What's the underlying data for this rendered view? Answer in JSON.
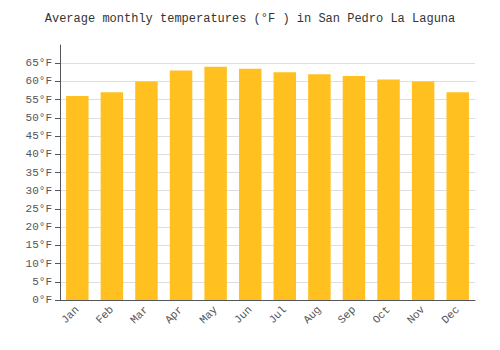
{
  "chart_data": {
    "type": "bar",
    "title": "Average monthly temperatures (°F ) in San Pedro La Laguna",
    "categories": [
      "Jan",
      "Feb",
      "Mar",
      "Apr",
      "May",
      "Jun",
      "Jul",
      "Aug",
      "Sep",
      "Oct",
      "Nov",
      "Dec"
    ],
    "values": [
      56,
      57,
      60,
      63,
      64,
      63.5,
      62.5,
      62,
      61.5,
      60.5,
      60,
      57
    ],
    "color": "#FFC020",
    "ylim": [
      0,
      70
    ],
    "yticks": [
      {
        "value": 0,
        "label": "0°F"
      },
      {
        "value": 5,
        "label": "5°F"
      },
      {
        "value": 10,
        "label": "10°F"
      },
      {
        "value": 15,
        "label": "15°F"
      },
      {
        "value": 20,
        "label": "20°F"
      },
      {
        "value": 25,
        "label": "25°F"
      },
      {
        "value": 30,
        "label": "30°F"
      },
      {
        "value": 35,
        "label": "35°F"
      },
      {
        "value": 40,
        "label": "40°F"
      },
      {
        "value": 45,
        "label": "45°F"
      },
      {
        "value": 50,
        "label": "50°F"
      },
      {
        "value": 55,
        "label": "55°F"
      },
      {
        "value": 60,
        "label": "60°F"
      },
      {
        "value": 65,
        "label": "65°F"
      }
    ],
    "grid": true
  }
}
